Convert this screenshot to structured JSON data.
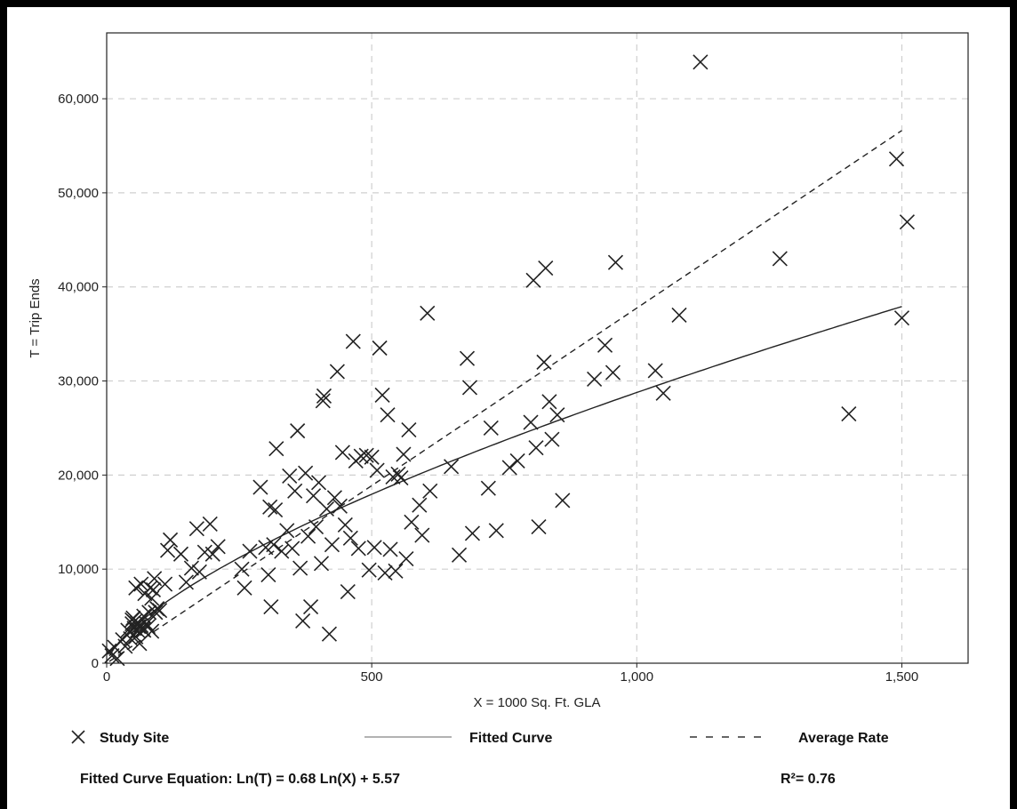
{
  "chart_data": {
    "type": "scatter",
    "xlabel": "X = 1000 Sq. Ft. GLA",
    "ylabel": "T = Trip Ends",
    "xlim": [
      0,
      1625
    ],
    "ylim": [
      0,
      67000
    ],
    "x_ticks": [
      0,
      500,
      1000,
      1500
    ],
    "x_tick_labels": [
      "0",
      "500",
      "1,000",
      "1,500"
    ],
    "y_ticks": [
      0,
      10000,
      20000,
      30000,
      40000,
      50000,
      60000
    ],
    "y_tick_labels": [
      "0",
      "10,000",
      "20,000",
      "30,000",
      "40,000",
      "50,000",
      "60,000"
    ],
    "grid": true,
    "legend_position": "bottom",
    "legend": {
      "study_site": "Study Site",
      "fitted_curve": "Fitted Curve",
      "average_rate": "Average Rate"
    },
    "equation": "Fitted Curve Equation: Ln(T) = 0.68 Ln(X) + 5.57",
    "r_squared": "R²= 0.76",
    "fitted_curve": {
      "a": 0.68,
      "b": 5.57,
      "x_range": [
        5,
        1500
      ]
    },
    "average_rate": {
      "rate": 37.75,
      "x_range": [
        5,
        1500
      ]
    },
    "points": [
      [
        5,
        1300
      ],
      [
        10,
        800
      ],
      [
        15,
        1700
      ],
      [
        20,
        500
      ],
      [
        30,
        2500
      ],
      [
        35,
        1800
      ],
      [
        40,
        3500
      ],
      [
        45,
        2600
      ],
      [
        48,
        4200
      ],
      [
        50,
        4800
      ],
      [
        52,
        3700
      ],
      [
        55,
        2800
      ],
      [
        58,
        4300
      ],
      [
        60,
        3900
      ],
      [
        62,
        2100
      ],
      [
        65,
        4000
      ],
      [
        68,
        3600
      ],
      [
        70,
        5000
      ],
      [
        72,
        7400
      ],
      [
        75,
        4200
      ],
      [
        78,
        3900
      ],
      [
        80,
        5400
      ],
      [
        82,
        8000
      ],
      [
        85,
        6900
      ],
      [
        88,
        7800
      ],
      [
        90,
        9000
      ],
      [
        92,
        5400
      ],
      [
        95,
        5800
      ],
      [
        100,
        5600
      ],
      [
        110,
        8400
      ],
      [
        115,
        12000
      ],
      [
        120,
        13100
      ],
      [
        140,
        11600
      ],
      [
        150,
        8600
      ],
      [
        160,
        10100
      ],
      [
        170,
        14300
      ],
      [
        175,
        9700
      ],
      [
        185,
        11800
      ],
      [
        195,
        14800
      ],
      [
        200,
        11600
      ],
      [
        210,
        12400
      ],
      [
        55,
        8000
      ],
      [
        65,
        8400
      ],
      [
        70,
        3500
      ],
      [
        85,
        3400
      ],
      [
        48,
        4600
      ],
      [
        52,
        4400
      ],
      [
        58,
        3500
      ],
      [
        255,
        10000
      ],
      [
        260,
        8000
      ],
      [
        270,
        11900
      ],
      [
        290,
        18700
      ],
      [
        300,
        12300
      ],
      [
        305,
        9400
      ],
      [
        308,
        16600
      ],
      [
        310,
        6000
      ],
      [
        315,
        12600
      ],
      [
        318,
        16300
      ],
      [
        320,
        22800
      ],
      [
        330,
        11900
      ],
      [
        340,
        14100
      ],
      [
        345,
        19900
      ],
      [
        350,
        12200
      ],
      [
        355,
        18300
      ],
      [
        360,
        24700
      ],
      [
        365,
        10100
      ],
      [
        370,
        4500
      ],
      [
        375,
        20200
      ],
      [
        380,
        13500
      ],
      [
        385,
        6000
      ],
      [
        390,
        17800
      ],
      [
        395,
        14500
      ],
      [
        400,
        19200
      ],
      [
        405,
        10600
      ],
      [
        408,
        27900
      ],
      [
        410,
        28400
      ],
      [
        415,
        16400
      ],
      [
        420,
        3100
      ],
      [
        425,
        12600
      ],
      [
        430,
        17600
      ],
      [
        435,
        31000
      ],
      [
        440,
        16700
      ],
      [
        445,
        22400
      ],
      [
        450,
        14700
      ],
      [
        455,
        7600
      ],
      [
        460,
        13300
      ],
      [
        465,
        34200
      ],
      [
        470,
        21500
      ],
      [
        475,
        12200
      ],
      [
        480,
        22000
      ],
      [
        490,
        22100
      ],
      [
        495,
        9900
      ],
      [
        500,
        21900
      ],
      [
        505,
        12300
      ],
      [
        510,
        20500
      ],
      [
        515,
        33500
      ],
      [
        520,
        28500
      ],
      [
        525,
        9600
      ],
      [
        530,
        26400
      ],
      [
        535,
        12100
      ],
      [
        540,
        19800
      ],
      [
        545,
        9800
      ],
      [
        550,
        20100
      ],
      [
        555,
        19700
      ],
      [
        560,
        22200
      ],
      [
        565,
        11100
      ],
      [
        570,
        24800
      ],
      [
        575,
        15000
      ],
      [
        590,
        16800
      ],
      [
        595,
        13600
      ],
      [
        605,
        37200
      ],
      [
        610,
        18300
      ],
      [
        650,
        20900
      ],
      [
        665,
        11500
      ],
      [
        680,
        32400
      ],
      [
        685,
        29300
      ],
      [
        690,
        13800
      ],
      [
        720,
        18600
      ],
      [
        725,
        25000
      ],
      [
        735,
        14100
      ],
      [
        760,
        20800
      ],
      [
        775,
        21500
      ],
      [
        800,
        25600
      ],
      [
        805,
        40700
      ],
      [
        810,
        22900
      ],
      [
        815,
        14500
      ],
      [
        825,
        32000
      ],
      [
        828,
        42000
      ],
      [
        835,
        27800
      ],
      [
        840,
        23800
      ],
      [
        850,
        26400
      ],
      [
        860,
        17300
      ],
      [
        920,
        30200
      ],
      [
        940,
        33800
      ],
      [
        955,
        30900
      ],
      [
        960,
        42600
      ],
      [
        1035,
        31100
      ],
      [
        1050,
        28700
      ],
      [
        1080,
        37000
      ],
      [
        1120,
        63900
      ],
      [
        1270,
        43000
      ],
      [
        1400,
        26500
      ],
      [
        1490,
        53600
      ],
      [
        1500,
        36700
      ],
      [
        1510,
        46900
      ]
    ]
  }
}
